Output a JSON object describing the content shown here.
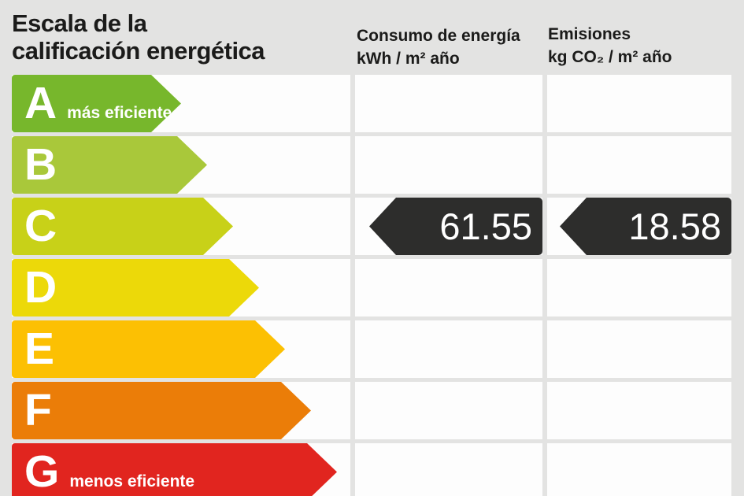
{
  "colors": {
    "background": "#e3e3e2",
    "cell": "#fdfdfd",
    "title_text": "#1b1b1a",
    "indicator": "#2d2d2c"
  },
  "header": {
    "title_line1": "Escala de la",
    "title_line2": "calificación energética",
    "consumption_line1": "Consumo de energía",
    "consumption_line2": "kWh / m² año",
    "emissions_line1": "Emisiones",
    "emissions_line2": "kg CO₂ / m² año"
  },
  "scale": {
    "rows": [
      {
        "grade": "A",
        "label": "más eficiente",
        "color": "#77b72c"
      },
      {
        "grade": "B",
        "label": "",
        "color": "#a9c83a"
      },
      {
        "grade": "C",
        "label": "",
        "color": "#c8d118"
      },
      {
        "grade": "D",
        "label": "",
        "color": "#ecd909"
      },
      {
        "grade": "E",
        "label": "",
        "color": "#fcc003"
      },
      {
        "grade": "F",
        "label": "",
        "color": "#eb7d08"
      },
      {
        "grade": "G",
        "label": "menos eficiente",
        "color": "#e1251f"
      }
    ]
  },
  "rating": {
    "grade": "C",
    "consumption_value": "61.55",
    "emissions_value": "18.58"
  },
  "chart_data": {
    "type": "bar",
    "title": "Escala de la calificación energética",
    "categories": [
      "A",
      "B",
      "C",
      "D",
      "E",
      "F",
      "G"
    ],
    "category_annotations": {
      "A": "más eficiente",
      "G": "menos eficiente"
    },
    "bar_colors": [
      "#77b72c",
      "#a9c83a",
      "#c8d118",
      "#ecd909",
      "#fcc003",
      "#eb7d08",
      "#e1251f"
    ],
    "columns": [
      "Consumo de energía kWh/m² año",
      "Emisiones kg CO₂/m² año"
    ],
    "rating": {
      "grade": "C",
      "consumo_kwh_m2_ano": 61.55,
      "emisiones_kg_co2_m2_ano": 18.58
    }
  }
}
